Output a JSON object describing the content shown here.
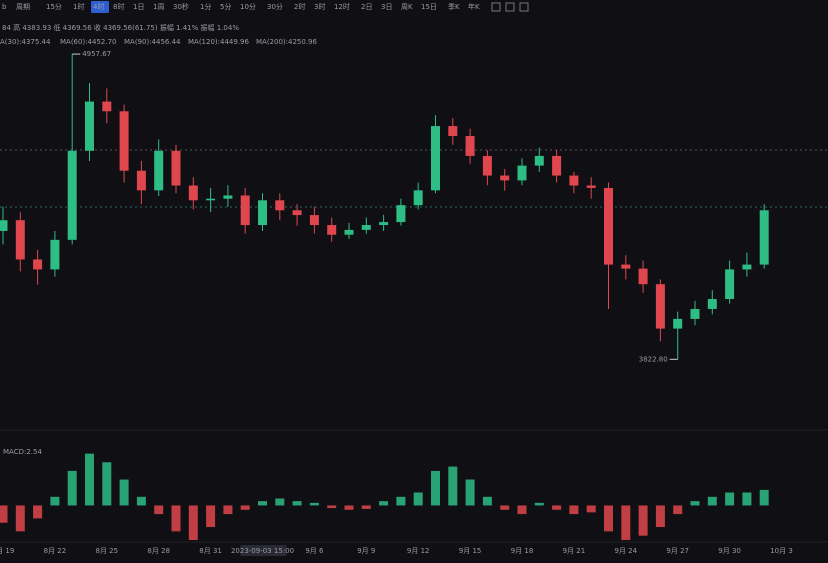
{
  "toolbar": {
    "symbol": "b",
    "period": "周期",
    "intervals": [
      "15分",
      "1时",
      "4时",
      "8时",
      "1日",
      "1周",
      "30秒",
      "1分",
      "5分",
      "10分",
      "30分",
      "2时",
      "3时",
      "12时",
      "2日",
      "3日",
      "周K",
      "15日",
      "季K",
      "年K"
    ],
    "active": "4时"
  },
  "info": "84 高 4383.93 低 4369.56 收 4369.56(61.75) 振幅 1.41% 振幅 1.04%",
  "ma_legend": [
    {
      "text": "A(30):4375.44",
      "color": "#e05c9a"
    },
    {
      "text": "MA(60):4452.70",
      "color": "#9b6fd6"
    },
    {
      "text": "MA(90):4456.44",
      "color": "#d8d8d8"
    },
    {
      "text": "MA(120):4449.96",
      "color": "#e8913a"
    },
    {
      "text": "MA(200):4250.96",
      "color": "#2bb3b0"
    }
  ],
  "macd_label": "MACD:2.54",
  "chart_data": {
    "type": "candlestick",
    "categories": [
      "8月 19",
      null,
      null,
      "8月 22",
      null,
      null,
      "8月 25",
      null,
      null,
      "8月 28",
      null,
      null,
      "8月 31",
      null,
      null,
      "2023-09-03 15:00",
      null,
      null,
      "9月 6",
      null,
      null,
      "9月 9",
      null,
      null,
      "9月 12",
      null,
      null,
      "9月 15",
      null,
      null,
      "9月 18",
      null,
      null,
      "9月 21",
      null,
      null,
      "9月 24",
      null,
      null,
      "9月 27",
      null,
      null,
      "9月 30",
      null,
      null,
      "10月 3"
    ],
    "open": [
      4300,
      4340,
      4194,
      4157,
      4267,
      4598,
      4781,
      4745,
      4524,
      4451,
      4598,
      4469,
      4414,
      4420,
      4432,
      4322,
      4414,
      4377,
      4359,
      4322,
      4286,
      4304,
      4322,
      4333,
      4396,
      4451,
      4690,
      4653,
      4579,
      4506,
      4488,
      4543,
      4579,
      4506,
      4469,
      4460,
      4175,
      4160,
      4102,
      3937,
      3973,
      4010,
      4047,
      4157,
      4175,
      null
    ],
    "high": [
      4390,
      4370,
      4230,
      4300,
      4957.67,
      4850,
      4830,
      4770,
      4560,
      4640,
      4620,
      4500,
      4460,
      4470,
      4460,
      4440,
      4440,
      4400,
      4390,
      4350,
      4330,
      4350,
      4360,
      4420,
      4480,
      4730,
      4720,
      4680,
      4600,
      4530,
      4570,
      4610,
      4600,
      4520,
      4500,
      4480,
      4210,
      4190,
      4120,
      4000,
      4040,
      4080,
      4190,
      4220,
      4400,
      null
    ],
    "low": [
      4250,
      4150,
      4100,
      4130,
      4250,
      4560,
      4700,
      4480,
      4400,
      4430,
      4440,
      4380,
      4370,
      4390,
      4290,
      4300,
      4340,
      4320,
      4290,
      4260,
      4270,
      4290,
      4300,
      4320,
      4380,
      4440,
      4620,
      4550,
      4470,
      4450,
      4470,
      4520,
      4480,
      4440,
      4420,
      4010,
      4120,
      4070,
      3890,
      3822.8,
      3950,
      3990,
      4030,
      4130,
      4160,
      null
    ],
    "close": [
      4340,
      4194,
      4157,
      4267,
      4598,
      4781,
      4745,
      4524,
      4451,
      4598,
      4469,
      4414,
      4420,
      4432,
      4322,
      4414,
      4377,
      4359,
      4322,
      4286,
      4304,
      4322,
      4333,
      4396,
      4451,
      4690,
      4653,
      4579,
      4506,
      4488,
      4543,
      4579,
      4506,
      4469,
      4460,
      4175,
      4160,
      4102,
      3937,
      3973,
      4010,
      4047,
      4157,
      4175,
      4377,
      null
    ],
    "up_color": "#2ebd85",
    "down_color": "#e0464e",
    "ylim": [
      3560,
      5010
    ],
    "price_labels": [
      {
        "text": "4957.67",
        "value": 4957.67
      },
      {
        "text": "3822.80",
        "value": 3822.8
      }
    ],
    "macd": {
      "values": [
        -20,
        -30,
        -15,
        10,
        40,
        60,
        50,
        30,
        10,
        -10,
        -30,
        -40,
        -25,
        -10,
        -5,
        5,
        8,
        5,
        3,
        -3,
        -5,
        -4,
        5,
        10,
        15,
        40,
        45,
        30,
        10,
        -5,
        -10,
        3,
        -5,
        -10,
        -8,
        -30,
        -40,
        -35,
        -25,
        -10,
        5,
        10,
        15,
        15,
        18,
        null
      ],
      "ylim": [
        -40,
        70
      ]
    }
  }
}
